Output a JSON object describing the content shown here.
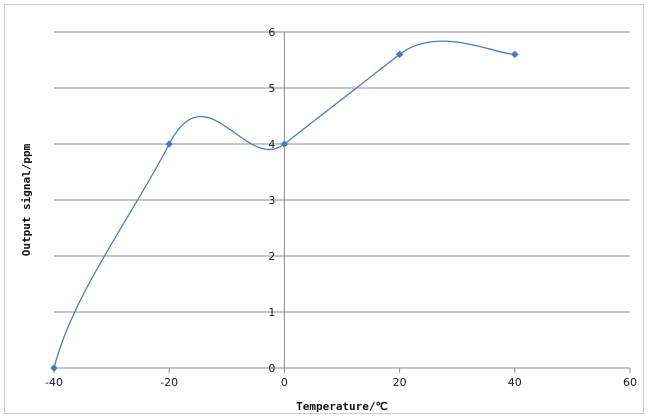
{
  "chart_data": {
    "type": "line",
    "smooth": true,
    "title": "",
    "xlabel": "Temperature/℃",
    "ylabel": "Output signal/ppm",
    "x": [
      -40,
      -20,
      0,
      20,
      40
    ],
    "series": [
      {
        "values": [
          0,
          4,
          4,
          5.6,
          5.6
        ],
        "color": "#4a7ebb",
        "marker": "diamond"
      }
    ],
    "xlim": [
      -40,
      60
    ],
    "ylim": [
      0,
      6
    ],
    "xticks": [
      -40,
      -20,
      0,
      20,
      40,
      60
    ],
    "yticks": [
      0,
      1,
      2,
      3,
      4,
      5,
      6
    ],
    "grid": "horizontal",
    "legend": "none"
  }
}
